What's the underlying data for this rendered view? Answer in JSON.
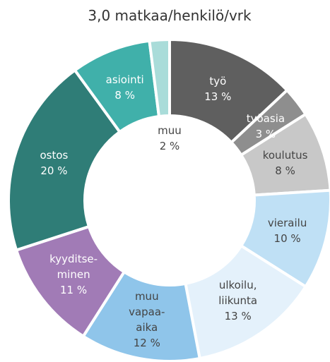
{
  "chart_data": {
    "type": "donut",
    "title": "3,0 matkaa/henkilö/vrk",
    "categories": [
      "työ",
      "työasia",
      "koulutus",
      "vierailu",
      "ulkoilu,\nliikunta",
      "muu\nvapaa-\naika",
      "kyyditse-\nminen",
      "ostos",
      "asiointi",
      "muu"
    ],
    "values": [
      13,
      3,
      8,
      10,
      13,
      12,
      11,
      20,
      8,
      2
    ],
    "value_labels": [
      "13 %",
      "3 %",
      "8 %",
      "10 %",
      "13 %",
      "12 %",
      "11 %",
      "20 %",
      "8 %",
      "2 %"
    ],
    "colors": [
      "#5f5f5f",
      "#8e8e8e",
      "#c8c8c8",
      "#bfe0f5",
      "#e4f1fb",
      "#8fc5ea",
      "#a17bb6",
      "#2f7d77",
      "#40b0aa",
      "#a9dcd9"
    ]
  }
}
